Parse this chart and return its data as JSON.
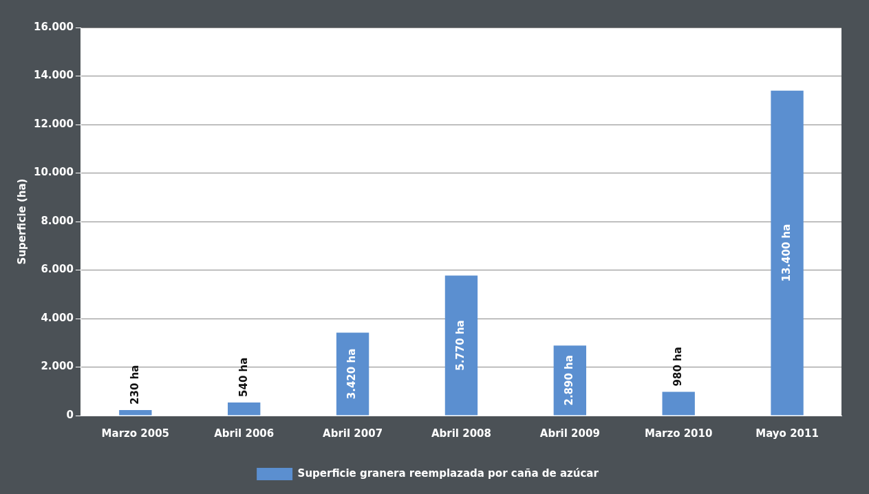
{
  "chart_data": {
    "type": "bar",
    "categories": [
      "Marzo 2005",
      "Abril 2006",
      "Abril 2007",
      "Abril 2008",
      "Abril 2009",
      "Marzo 2010",
      "Mayo 2011"
    ],
    "series": [
      {
        "name": "Superficie granera reemplazada por caña de azúcar",
        "color": "#5b8fd0",
        "values": [
          230,
          540,
          3420,
          5770,
          2890,
          980,
          13400
        ],
        "value_labels": [
          "230 ha",
          "540 ha",
          "3.420 ha",
          "5.770 ha",
          "2.890 ha",
          "980 ha",
          "13.400 ha"
        ]
      }
    ],
    "ylabel": "Superficie (ha)",
    "ylim": [
      0,
      16000
    ],
    "yticks": [
      {
        "value": 0,
        "label": "0"
      },
      {
        "value": 2000,
        "label": "2.000"
      },
      {
        "value": 4000,
        "label": "4.000"
      },
      {
        "value": 6000,
        "label": "6.000"
      },
      {
        "value": 8000,
        "label": "8.000"
      },
      {
        "value": 10000,
        "label": "10.000"
      },
      {
        "value": 12000,
        "label": "12.000"
      },
      {
        "value": 14000,
        "label": "14.000"
      },
      {
        "value": 16000,
        "label": "16.000"
      }
    ],
    "grid": "y",
    "legend": "bottom"
  }
}
